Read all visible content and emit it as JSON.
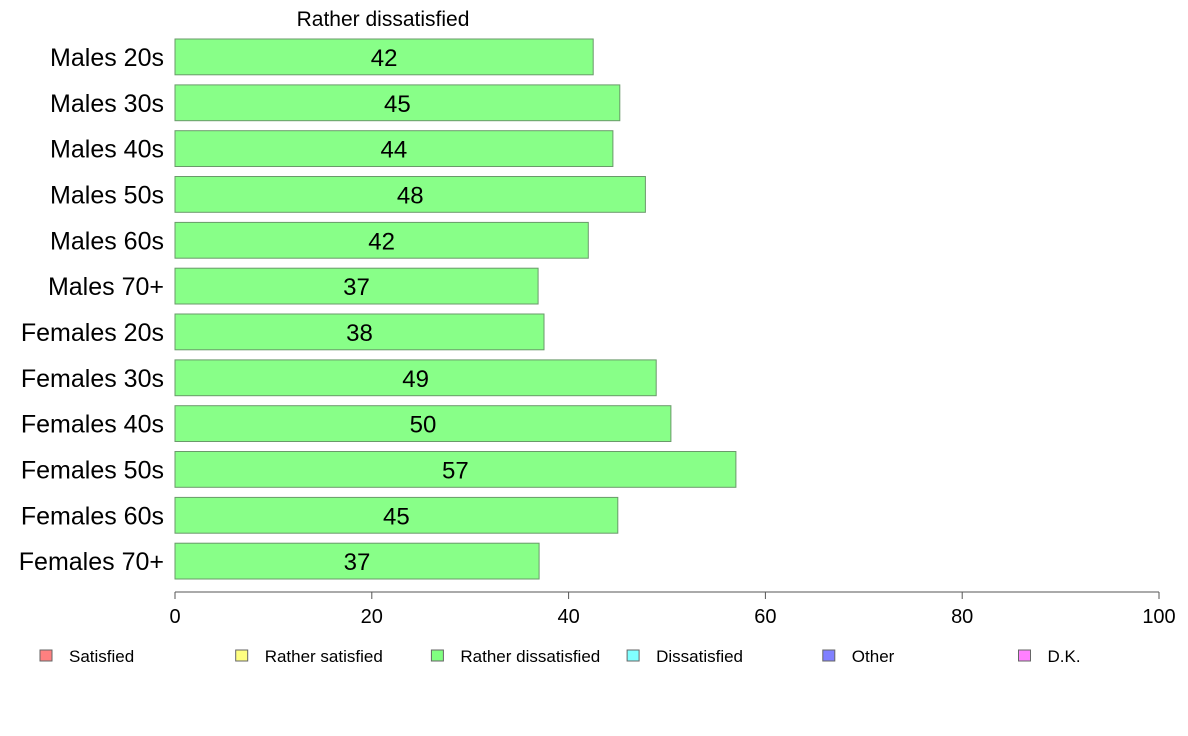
{
  "chart_data": {
    "type": "bar",
    "orientation": "horizontal",
    "title": "Rather dissatisfied",
    "xlabel": "",
    "ylabel": "",
    "categories": [
      "Males 20s",
      "Males 30s",
      "Males 40s",
      "Males 50s",
      "Males 60s",
      "Males 70+",
      "Females 20s",
      "Females 30s",
      "Females 40s",
      "Females 50s",
      "Females 60s",
      "Females 70+"
    ],
    "values": [
      42.5,
      45.2,
      44.5,
      47.8,
      42.0,
      36.9,
      37.5,
      48.9,
      50.4,
      57.0,
      45.0,
      37.0
    ],
    "value_labels": [
      "42",
      "45",
      "44",
      "48",
      "42",
      "37",
      "38",
      "49",
      "50",
      "57",
      "45",
      "37"
    ],
    "xlim": [
      0,
      100
    ],
    "xticks": [
      0,
      20,
      40,
      60,
      80,
      100
    ],
    "xtick_labels": [
      "0",
      "20",
      "40",
      "60",
      "80",
      "100"
    ],
    "bar_color": "#88ff88",
    "bar_edge_color": "#6a9a6a",
    "grid": false,
    "legend_position": "bottom",
    "legend": [
      {
        "label": "Satisfied",
        "color": "#ff8080"
      },
      {
        "label": "Rather satisfied",
        "color": "#ffff80"
      },
      {
        "label": "Rather dissatisfied",
        "color": "#80ff80"
      },
      {
        "label": "Dissatisfied",
        "color": "#80ffff"
      },
      {
        "label": "Other",
        "color": "#8080ff"
      },
      {
        "label": "D.K.",
        "color": "#ff80ff"
      }
    ]
  }
}
